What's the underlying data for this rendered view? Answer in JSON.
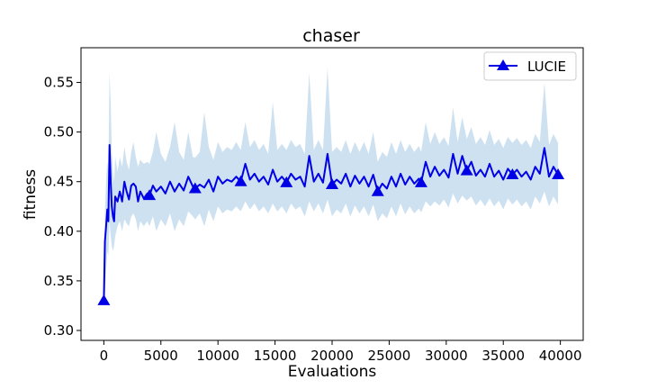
{
  "chart_data": {
    "type": "line",
    "title": "chaser",
    "xlabel": "Evaluations",
    "ylabel": "fitness",
    "xlim": [
      -2000,
      42000
    ],
    "ylim": [
      0.29,
      0.585
    ],
    "xticks": [
      0,
      5000,
      10000,
      15000,
      20000,
      25000,
      30000,
      35000,
      40000
    ],
    "xtick_labels": [
      "0",
      "5000",
      "10000",
      "15000",
      "20000",
      "25000",
      "30000",
      "35000",
      "40000"
    ],
    "yticks": [
      0.3,
      0.35,
      0.4,
      0.45,
      0.5,
      0.55
    ],
    "ytick_labels": [
      "0.30",
      "0.35",
      "0.40",
      "0.45",
      "0.50",
      "0.55"
    ],
    "legend": {
      "position": "top-right",
      "entries": [
        "LUCIE"
      ]
    },
    "grid": false,
    "colors": {
      "line": "#0000e6",
      "band": "#c6dcee"
    },
    "series": [
      {
        "name": "LUCIE",
        "marker": "triangle-up",
        "marker_x": [
          0,
          4000,
          8000,
          12000,
          16000,
          20000,
          24000,
          27800,
          31800,
          35800,
          39800
        ],
        "x": [
          0,
          100,
          200,
          300,
          400,
          500,
          600,
          700,
          800,
          900,
          1000,
          1200,
          1400,
          1600,
          1800,
          2000,
          2200,
          2400,
          2600,
          2800,
          3000,
          3200,
          3500,
          3800,
          4000,
          4300,
          4600,
          5000,
          5400,
          5800,
          6200,
          6600,
          7000,
          7400,
          7800,
          8000,
          8400,
          8800,
          9200,
          9600,
          10000,
          10400,
          10800,
          11200,
          11600,
          12000,
          12400,
          12800,
          13200,
          13600,
          14000,
          14400,
          14800,
          15200,
          15600,
          16000,
          16400,
          16800,
          17200,
          17600,
          18000,
          18400,
          18800,
          19200,
          19600,
          20000,
          20400,
          20800,
          21200,
          21600,
          22000,
          22400,
          22800,
          23200,
          23600,
          24000,
          24400,
          24800,
          25200,
          25600,
          26000,
          26400,
          26800,
          27200,
          27600,
          27800,
          28200,
          28600,
          29000,
          29400,
          29800,
          30200,
          30600,
          31000,
          31400,
          31800,
          32200,
          32600,
          33000,
          33400,
          33800,
          34200,
          34600,
          35000,
          35400,
          35800,
          36200,
          36600,
          37000,
          37400,
          37800,
          38200,
          38600,
          39000,
          39400,
          39800
        ],
        "values": [
          0.33,
          0.39,
          0.405,
          0.422,
          0.41,
          0.487,
          0.45,
          0.425,
          0.415,
          0.41,
          0.435,
          0.43,
          0.44,
          0.43,
          0.45,
          0.44,
          0.432,
          0.446,
          0.448,
          0.445,
          0.43,
          0.44,
          0.433,
          0.438,
          0.436,
          0.446,
          0.44,
          0.445,
          0.438,
          0.45,
          0.44,
          0.448,
          0.441,
          0.455,
          0.445,
          0.443,
          0.447,
          0.444,
          0.452,
          0.44,
          0.455,
          0.448,
          0.452,
          0.45,
          0.455,
          0.45,
          0.468,
          0.452,
          0.458,
          0.45,
          0.455,
          0.447,
          0.462,
          0.45,
          0.455,
          0.449,
          0.458,
          0.452,
          0.455,
          0.445,
          0.476,
          0.45,
          0.458,
          0.449,
          0.478,
          0.447,
          0.452,
          0.448,
          0.458,
          0.445,
          0.456,
          0.448,
          0.455,
          0.445,
          0.457,
          0.44,
          0.448,
          0.443,
          0.455,
          0.445,
          0.458,
          0.447,
          0.455,
          0.448,
          0.453,
          0.449,
          0.47,
          0.455,
          0.465,
          0.456,
          0.462,
          0.454,
          0.478,
          0.458,
          0.476,
          0.461,
          0.47,
          0.456,
          0.462,
          0.455,
          0.468,
          0.455,
          0.461,
          0.452,
          0.463,
          0.457,
          0.462,
          0.455,
          0.46,
          0.452,
          0.465,
          0.458,
          0.484,
          0.455,
          0.465,
          0.457
        ],
        "band_lower": [
          0.33,
          0.34,
          0.36,
          0.38,
          0.375,
          0.41,
          0.395,
          0.385,
          0.38,
          0.385,
          0.395,
          0.405,
          0.41,
          0.4,
          0.412,
          0.408,
          0.405,
          0.415,
          0.418,
          0.412,
          0.4,
          0.41,
          0.405,
          0.41,
          0.405,
          0.415,
          0.4,
          0.412,
          0.405,
          0.418,
          0.4,
          0.412,
          0.405,
          0.42,
          0.415,
          0.412,
          0.418,
          0.405,
          0.422,
          0.41,
          0.425,
          0.418,
          0.422,
          0.42,
          0.425,
          0.42,
          0.43,
          0.422,
          0.428,
          0.42,
          0.425,
          0.418,
          0.428,
          0.42,
          0.425,
          0.418,
          0.428,
          0.422,
          0.425,
          0.415,
          0.43,
          0.42,
          0.428,
          0.418,
          0.432,
          0.415,
          0.422,
          0.418,
          0.428,
          0.415,
          0.426,
          0.418,
          0.425,
          0.415,
          0.427,
          0.41,
          0.418,
          0.413,
          0.425,
          0.415,
          0.428,
          0.417,
          0.425,
          0.418,
          0.423,
          0.419,
          0.43,
          0.425,
          0.43,
          0.426,
          0.432,
          0.424,
          0.438,
          0.428,
          0.436,
          0.431,
          0.435,
          0.426,
          0.432,
          0.425,
          0.433,
          0.425,
          0.431,
          0.422,
          0.433,
          0.427,
          0.432,
          0.425,
          0.43,
          0.422,
          0.435,
          0.428,
          0.44,
          0.425,
          0.435,
          0.427
        ],
        "band_upper": [
          0.33,
          0.42,
          0.45,
          0.47,
          0.46,
          0.56,
          0.53,
          0.48,
          0.46,
          0.45,
          0.475,
          0.46,
          0.475,
          0.465,
          0.485,
          0.47,
          0.462,
          0.48,
          0.49,
          0.475,
          0.465,
          0.472,
          0.468,
          0.47,
          0.468,
          0.48,
          0.5,
          0.478,
          0.47,
          0.485,
          0.51,
          0.48,
          0.472,
          0.5,
          0.475,
          0.474,
          0.48,
          0.52,
          0.485,
          0.472,
          0.49,
          0.48,
          0.485,
          0.482,
          0.49,
          0.482,
          0.51,
          0.485,
          0.492,
          0.482,
          0.488,
          0.478,
          0.53,
          0.482,
          0.488,
          0.482,
          0.492,
          0.485,
          0.488,
          0.478,
          0.56,
          0.482,
          0.492,
          0.482,
          0.565,
          0.48,
          0.485,
          0.48,
          0.492,
          0.478,
          0.49,
          0.48,
          0.49,
          0.478,
          0.5,
          0.47,
          0.48,
          0.475,
          0.49,
          0.478,
          0.492,
          0.48,
          0.488,
          0.48,
          0.486,
          0.48,
          0.51,
          0.488,
          0.5,
          0.488,
          0.495,
          0.486,
          0.525,
          0.49,
          0.515,
          0.493,
          0.505,
          0.488,
          0.495,
          0.487,
          0.502,
          0.487,
          0.493,
          0.484,
          0.495,
          0.489,
          0.494,
          0.487,
          0.492,
          0.484,
          0.498,
          0.49,
          0.55,
          0.487,
          0.498,
          0.489
        ]
      }
    ]
  }
}
